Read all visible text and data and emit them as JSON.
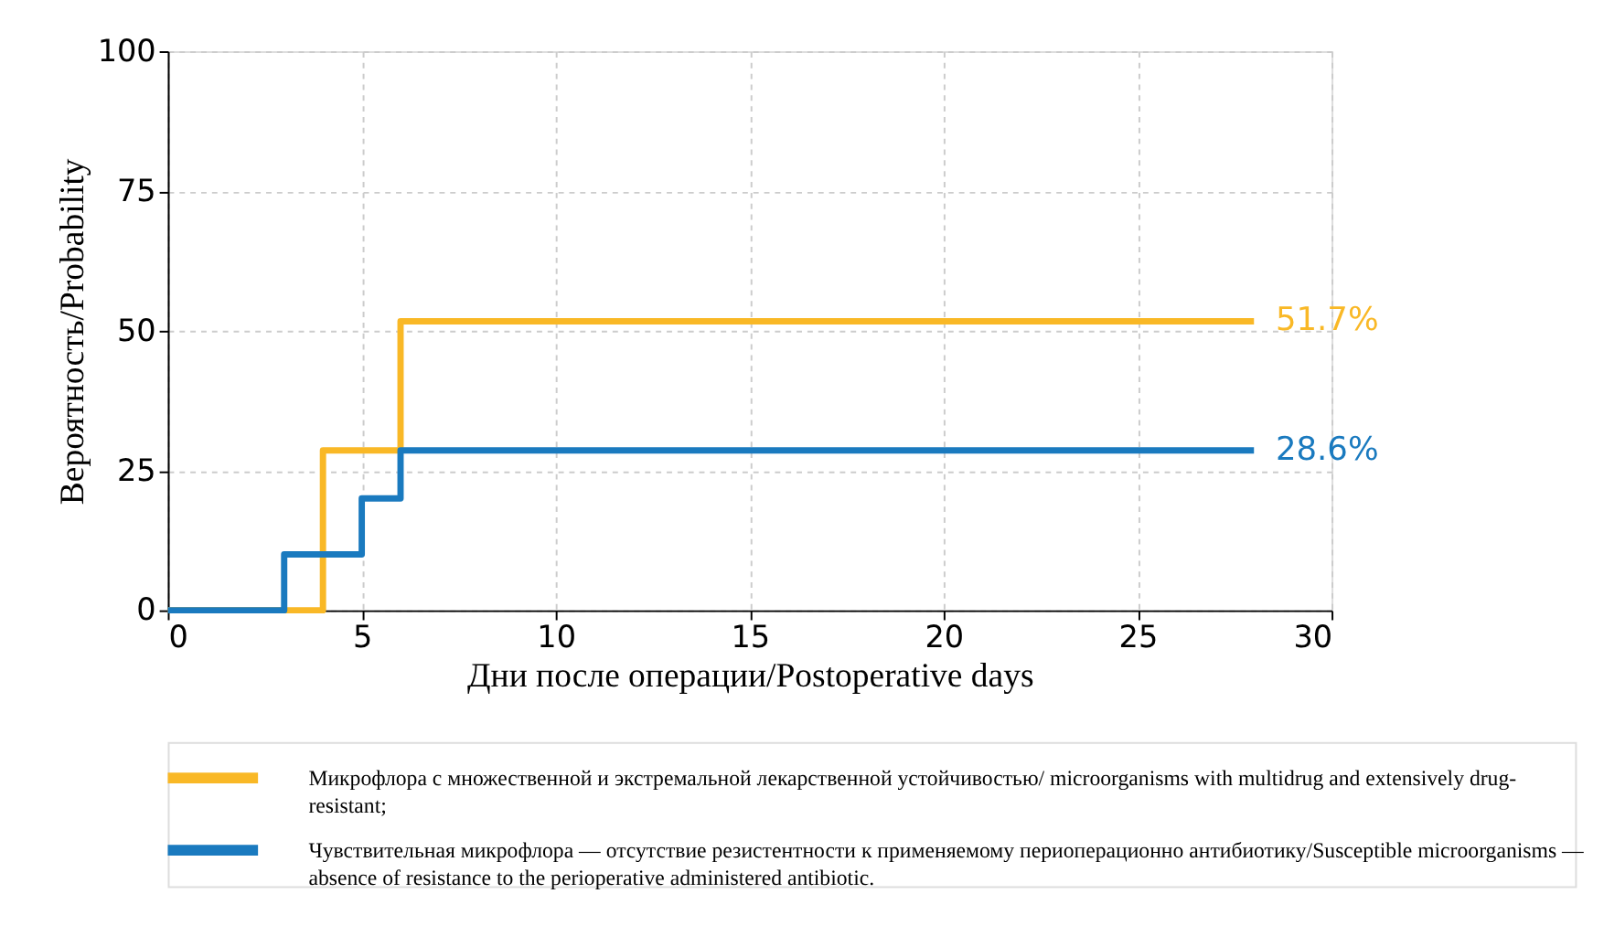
{
  "chart_data": {
    "type": "step",
    "xlabel": "Дни после операции/Postoperative days",
    "ylabel": "Вероятность/Probability",
    "series": [
      {
        "name": "Микрофлора с множественной и экстремальной лекарственной устойчивостью/ microorganisms with multidrug and extensively drug-resistant;",
        "color": "#f9b826",
        "x": [
          0,
          4,
          6,
          28
        ],
        "values": [
          0,
          28.6,
          51.7,
          51.7
        ]
      },
      {
        "name": "Чувствительная микрофлора — отсутствие резистентности к применяемому периоперационно антибиотику/Susceptible microorganisms — absence of resistance to the perioperative administered antibiotic.",
        "color": "#1a7abf",
        "x": [
          0,
          3,
          5,
          6,
          28
        ],
        "values": [
          0,
          10,
          20,
          28.6,
          28.6
        ]
      }
    ],
    "annotations": [
      {
        "text": "51.7%",
        "x": 28,
        "y": 51.7
      },
      {
        "text": "28.6%",
        "x": 28,
        "y": 28.6
      }
    ],
    "xlim": [
      0,
      30
    ],
    "xticks": [
      0,
      5,
      10,
      15,
      20,
      25,
      30
    ],
    "ylim": [
      0,
      100
    ],
    "yticks": [
      0,
      25,
      50,
      75,
      100
    ],
    "grid": true,
    "legend": "bottom"
  }
}
